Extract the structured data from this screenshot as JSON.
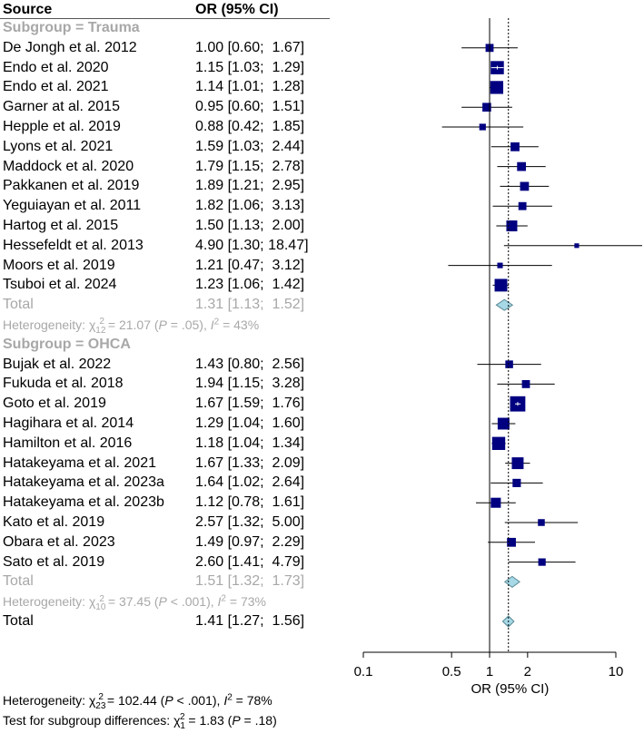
{
  "header": {
    "source": "Source",
    "or": "OR (95% CI)"
  },
  "chart_data": {
    "type": "forest",
    "xscale": "log",
    "xlim": [
      0.1,
      10
    ],
    "xticks": [
      0.1,
      0.5,
      1,
      2,
      10
    ],
    "xtick_labels": [
      "0.1",
      "0.5",
      "1",
      "2",
      "10"
    ],
    "xlabel": "OR (95% CI)",
    "null_line": 1,
    "reference_line": 1.41,
    "subgroups": [
      {
        "title": "Subgroup = Trauma",
        "studies": [
          {
            "name": "De Jongh et al. 2012",
            "or": 1.0,
            "lo": 0.6,
            "hi": 1.67,
            "label": "1.00 [0.60;  1.67]",
            "w": 3.0
          },
          {
            "name": "Endo et al. 2020",
            "or": 1.15,
            "lo": 1.03,
            "hi": 1.29,
            "label": "1.15 [1.03;  1.29]",
            "w": 6.6
          },
          {
            "name": "Endo et al. 2021",
            "or": 1.14,
            "lo": 1.01,
            "hi": 1.28,
            "label": "1.14 [1.01;  1.28]",
            "w": 6.4
          },
          {
            "name": "Garner at al. 2015",
            "or": 0.95,
            "lo": 0.6,
            "hi": 1.51,
            "label": "0.95 [0.60;  1.51]",
            "w": 3.5
          },
          {
            "name": "Hepple et al. 2019",
            "or": 0.88,
            "lo": 0.42,
            "hi": 1.85,
            "label": "0.88 [0.42;  1.85]",
            "w": 2.0
          },
          {
            "name": "Lyons et al. 2021",
            "or": 1.59,
            "lo": 1.03,
            "hi": 2.44,
            "label": "1.59 [1.03;  2.44]",
            "w": 3.6
          },
          {
            "name": "Maddock et al. 2020",
            "or": 1.79,
            "lo": 1.15,
            "hi": 2.78,
            "label": "1.79 [1.15;  2.78]",
            "w": 3.6
          },
          {
            "name": "Pakkanen et al. 2019",
            "or": 1.89,
            "lo": 1.21,
            "hi": 2.95,
            "label": "1.89 [1.21;  2.95]",
            "w": 3.6
          },
          {
            "name": "Yeguiayan et al. 2011",
            "or": 1.82,
            "lo": 1.06,
            "hi": 3.13,
            "label": "1.82 [1.06;  3.13]",
            "w": 3.0
          },
          {
            "name": "Hartog et al. 2015",
            "or": 1.5,
            "lo": 1.13,
            "hi": 2.0,
            "label": "1.50 [1.13;  2.00]",
            "w": 5.0
          },
          {
            "name": "Hessefeldt et al. 2013",
            "or": 4.9,
            "lo": 1.3,
            "hi": 18.47,
            "label": "4.90 [1.30; 18.47]",
            "w": 0.7
          },
          {
            "name": "Moors et al. 2019",
            "or": 1.21,
            "lo": 0.47,
            "hi": 3.12,
            "label": "1.21 [0.47;  3.12]",
            "w": 1.3
          },
          {
            "name": "Tsuboi et al. 2024",
            "or": 1.23,
            "lo": 1.06,
            "hi": 1.42,
            "label": "1.23 [1.06;  1.42]",
            "w": 6.2
          }
        ],
        "total": {
          "name": "Total",
          "or": 1.31,
          "lo": 1.13,
          "hi": 1.52,
          "label": "1.31 [1.13;  1.52]"
        },
        "heterogeneity": {
          "pre": "Heterogeneity: χ",
          "sub": "12",
          "sup": "2",
          "mid": " = 21.07 (",
          "p": "P",
          "post": " = .05), ",
          "i": "I",
          "i_sup": "2",
          "end": " = 43%"
        }
      },
      {
        "title": "Subgroup = OHCA",
        "studies": [
          {
            "name": "Bujak et al. 2022",
            "or": 1.43,
            "lo": 0.8,
            "hi": 2.56,
            "label": "1.43 [0.80;  2.56]",
            "w": 2.8
          },
          {
            "name": "Fukuda et al. 2018",
            "or": 1.94,
            "lo": 1.15,
            "hi": 3.28,
            "label": "1.94 [1.15;  3.28]",
            "w": 3.0
          },
          {
            "name": "Goto et al. 2019",
            "or": 1.67,
            "lo": 1.59,
            "hi": 1.76,
            "label": "1.67 [1.59;  1.76]",
            "w": 8.0
          },
          {
            "name": "Hagihara et al. 2014",
            "or": 1.29,
            "lo": 1.04,
            "hi": 1.6,
            "label": "1.29 [1.04;  1.60]",
            "w": 5.6
          },
          {
            "name": "Hamilton et al. 2016",
            "or": 1.18,
            "lo": 1.04,
            "hi": 1.34,
            "label": "1.18 [1.04;  1.34]",
            "w": 6.5
          },
          {
            "name": "Hatakeyama et al. 2021",
            "or": 1.67,
            "lo": 1.33,
            "hi": 2.09,
            "label": "1.67 [1.33;  2.09]",
            "w": 5.6
          },
          {
            "name": "Hatakeyama et al. 2023a",
            "or": 1.64,
            "lo": 1.02,
            "hi": 2.64,
            "label": "1.64 [1.02;  2.64]",
            "w": 3.2
          },
          {
            "name": "Hatakeyama et al. 2023b",
            "or": 1.12,
            "lo": 0.78,
            "hi": 1.61,
            "label": "1.12 [0.78;  1.61]",
            "w": 4.4
          },
          {
            "name": "Kato et al. 2019",
            "or": 2.57,
            "lo": 1.32,
            "hi": 5.0,
            "label": "2.57 [1.32;  5.00]",
            "w": 2.2
          },
          {
            "name": "Obara et al. 2023",
            "or": 1.49,
            "lo": 0.97,
            "hi": 2.29,
            "label": "1.49 [0.97;  2.29]",
            "w": 3.6
          },
          {
            "name": "Sato et al. 2019",
            "or": 2.6,
            "lo": 1.41,
            "hi": 4.79,
            "label": "2.60 [1.41;  4.79]",
            "w": 2.6
          }
        ],
        "total": {
          "name": "Total",
          "or": 1.51,
          "lo": 1.32,
          "hi": 1.73,
          "label": "1.51 [1.32;  1.73]"
        },
        "heterogeneity": {
          "pre": "Heterogeneity: χ",
          "sub": "10",
          "sup": "2",
          "mid": " = 37.45 (",
          "p": "P",
          "post": " < .001), ",
          "i": "I",
          "i_sup": "2",
          "end": " = 73%"
        }
      }
    ],
    "overall": {
      "name": "Total",
      "or": 1.41,
      "lo": 1.27,
      "hi": 1.56,
      "label": "1.41 [1.27;  1.56]"
    },
    "colors": {
      "square": "#000080",
      "diamond": "#a6d8e6",
      "diamond_stroke": "#5a8a94",
      "gray_text": "#a8a8a8"
    }
  },
  "footer": {
    "het": {
      "pre": "Heterogeneity: χ",
      "sub": "23",
      "sup": "2",
      "mid": " = 102.44 (",
      "p": "P",
      "post": " < .001), ",
      "i": "I",
      "i_sup": "2",
      "end": " = 78%"
    },
    "test": {
      "pre": "Test for subgroup differences: χ",
      "sub": "1",
      "sup": "2",
      "mid": " = 1.83 (",
      "p": "P",
      "post": " = .18)"
    }
  }
}
